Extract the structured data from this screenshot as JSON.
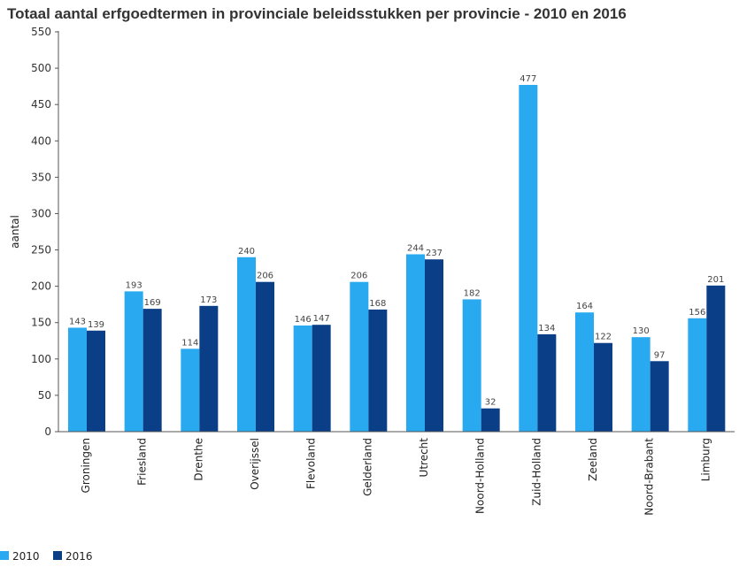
{
  "chart_data": {
    "type": "bar",
    "title": "Totaal aantal erfgoedtermen in provinciale beleidsstukken per provincie - 2010 en 2016",
    "xlabel": "",
    "ylabel": "aantal",
    "ylim": [
      0,
      550
    ],
    "yticks": [
      "0",
      "50",
      "100",
      "150",
      "200",
      "250",
      "300",
      "350",
      "400",
      "450",
      "500",
      "550"
    ],
    "categories": [
      "Groningen",
      "Friesland",
      "Drenthe",
      "Overijssel",
      "Flevoland",
      "Gelderland",
      "Utrecht",
      "Noord-Holland",
      "Zuid-Holland",
      "Zeeland",
      "Noord-Brabant",
      "Limburg"
    ],
    "series": [
      {
        "name": "2010",
        "color": "#29a9f0",
        "values": [
          143,
          193,
          114,
          240,
          146,
          206,
          244,
          182,
          477,
          164,
          130,
          156
        ]
      },
      {
        "name": "2016",
        "color": "#0a3f87",
        "values": [
          139,
          169,
          173,
          206,
          147,
          168,
          237,
          32,
          134,
          122,
          97,
          201
        ]
      }
    ],
    "grid": false,
    "legend_position": "bottom-left"
  }
}
